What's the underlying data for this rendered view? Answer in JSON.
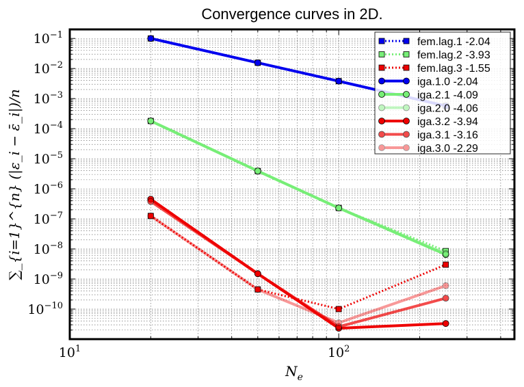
{
  "chart_data": {
    "type": "line",
    "title": "Convergence curves in 2D.",
    "xlabel": "N_e",
    "ylabel": "∑_{i=1}^{n} (|ε_i − ε̄_i|)/n",
    "xscale": "log",
    "yscale": "log",
    "xlim": [
      10,
      450
    ],
    "ylim": [
      1e-11,
      0.2
    ],
    "grid": true,
    "legend_position": "top-right",
    "x_ticks": [
      {
        "base": "10",
        "exp": "1",
        "value": 10
      },
      {
        "base": "10",
        "exp": "2",
        "value": 100
      }
    ],
    "y_ticks": [
      {
        "base": "10",
        "exp": "−1",
        "value": 0.1
      },
      {
        "base": "10",
        "exp": "−2",
        "value": 0.01
      },
      {
        "base": "10",
        "exp": "−3",
        "value": 0.001
      },
      {
        "base": "10",
        "exp": "−4",
        "value": 0.0001
      },
      {
        "base": "10",
        "exp": "−5",
        "value": 1e-05
      },
      {
        "base": "10",
        "exp": "−6",
        "value": 1e-06
      },
      {
        "base": "10",
        "exp": "−7",
        "value": 1e-07
      },
      {
        "base": "10",
        "exp": "−8",
        "value": 1e-08
      },
      {
        "base": "10",
        "exp": "−9",
        "value": 1e-09
      },
      {
        "base": "10",
        "exp": "−10",
        "value": 1e-10
      }
    ],
    "series": [
      {
        "name": "fem.lag.1 -2.04",
        "color": "#0000ee",
        "style": "dotted",
        "marker": "square",
        "opacity": 1.0,
        "x": [
          20,
          50,
          100,
          250
        ],
        "y": [
          0.1,
          0.0155,
          0.0038,
          0.00057
        ]
      },
      {
        "name": "fem.lag.2 -3.93",
        "color": "#77ee77",
        "style": "dotted",
        "marker": "square",
        "opacity": 1.0,
        "x": [
          20,
          50,
          100,
          250
        ],
        "y": [
          0.00018,
          3.9e-06,
          2.3e-07,
          8.5e-09
        ]
      },
      {
        "name": "fem.lag.3 -1.55",
        "color": "#ee0000",
        "style": "dotted",
        "marker": "square",
        "opacity": 1.0,
        "x": [
          20,
          50,
          100,
          250
        ],
        "y": [
          1.25e-07,
          4.5e-10,
          1e-10,
          3e-09
        ]
      },
      {
        "name": "iga.1.0 -2.04",
        "color": "#0000ee",
        "style": "solid",
        "marker": "circle",
        "opacity": 1.0,
        "x": [
          20,
          50,
          100,
          250
        ],
        "y": [
          0.1,
          0.0155,
          0.0038,
          0.00057
        ]
      },
      {
        "name": "iga.2.1 -4.09",
        "color": "#77ee77",
        "style": "solid",
        "marker": "circle",
        "opacity": 1.0,
        "x": [
          20,
          50,
          100,
          250
        ],
        "y": [
          0.00018,
          3.9e-06,
          2.3e-07,
          6.5e-09
        ]
      },
      {
        "name": "iga.2.0 -4.06",
        "color": "#77ee77",
        "style": "solid",
        "marker": "circle",
        "opacity": 0.45,
        "x": [
          20,
          50,
          100,
          250
        ],
        "y": [
          0.00018,
          3.9e-06,
          2.3e-07,
          7e-09
        ]
      },
      {
        "name": "iga.3.2 -3.94",
        "color": "#ee0000",
        "style": "solid",
        "marker": "circle",
        "opacity": 1.0,
        "x": [
          20,
          50,
          100,
          250
        ],
        "y": [
          4.5e-07,
          1.5e-09,
          2.3e-11,
          3.3e-11
        ]
      },
      {
        "name": "iga.3.1 -3.16",
        "color": "#ee0000",
        "style": "solid",
        "marker": "circle",
        "opacity": 0.7,
        "x": [
          20,
          50,
          100,
          250
        ],
        "y": [
          3.8e-07,
          1.5e-09,
          2.6e-11,
          2.3e-10
        ]
      },
      {
        "name": "iga.3.0 -2.29",
        "color": "#ee0000",
        "style": "solid",
        "marker": "circle",
        "opacity": 0.4,
        "x": [
          20,
          50,
          100,
          250
        ],
        "y": [
          1.25e-07,
          4.5e-10,
          3.5e-11,
          6e-10
        ]
      }
    ]
  }
}
